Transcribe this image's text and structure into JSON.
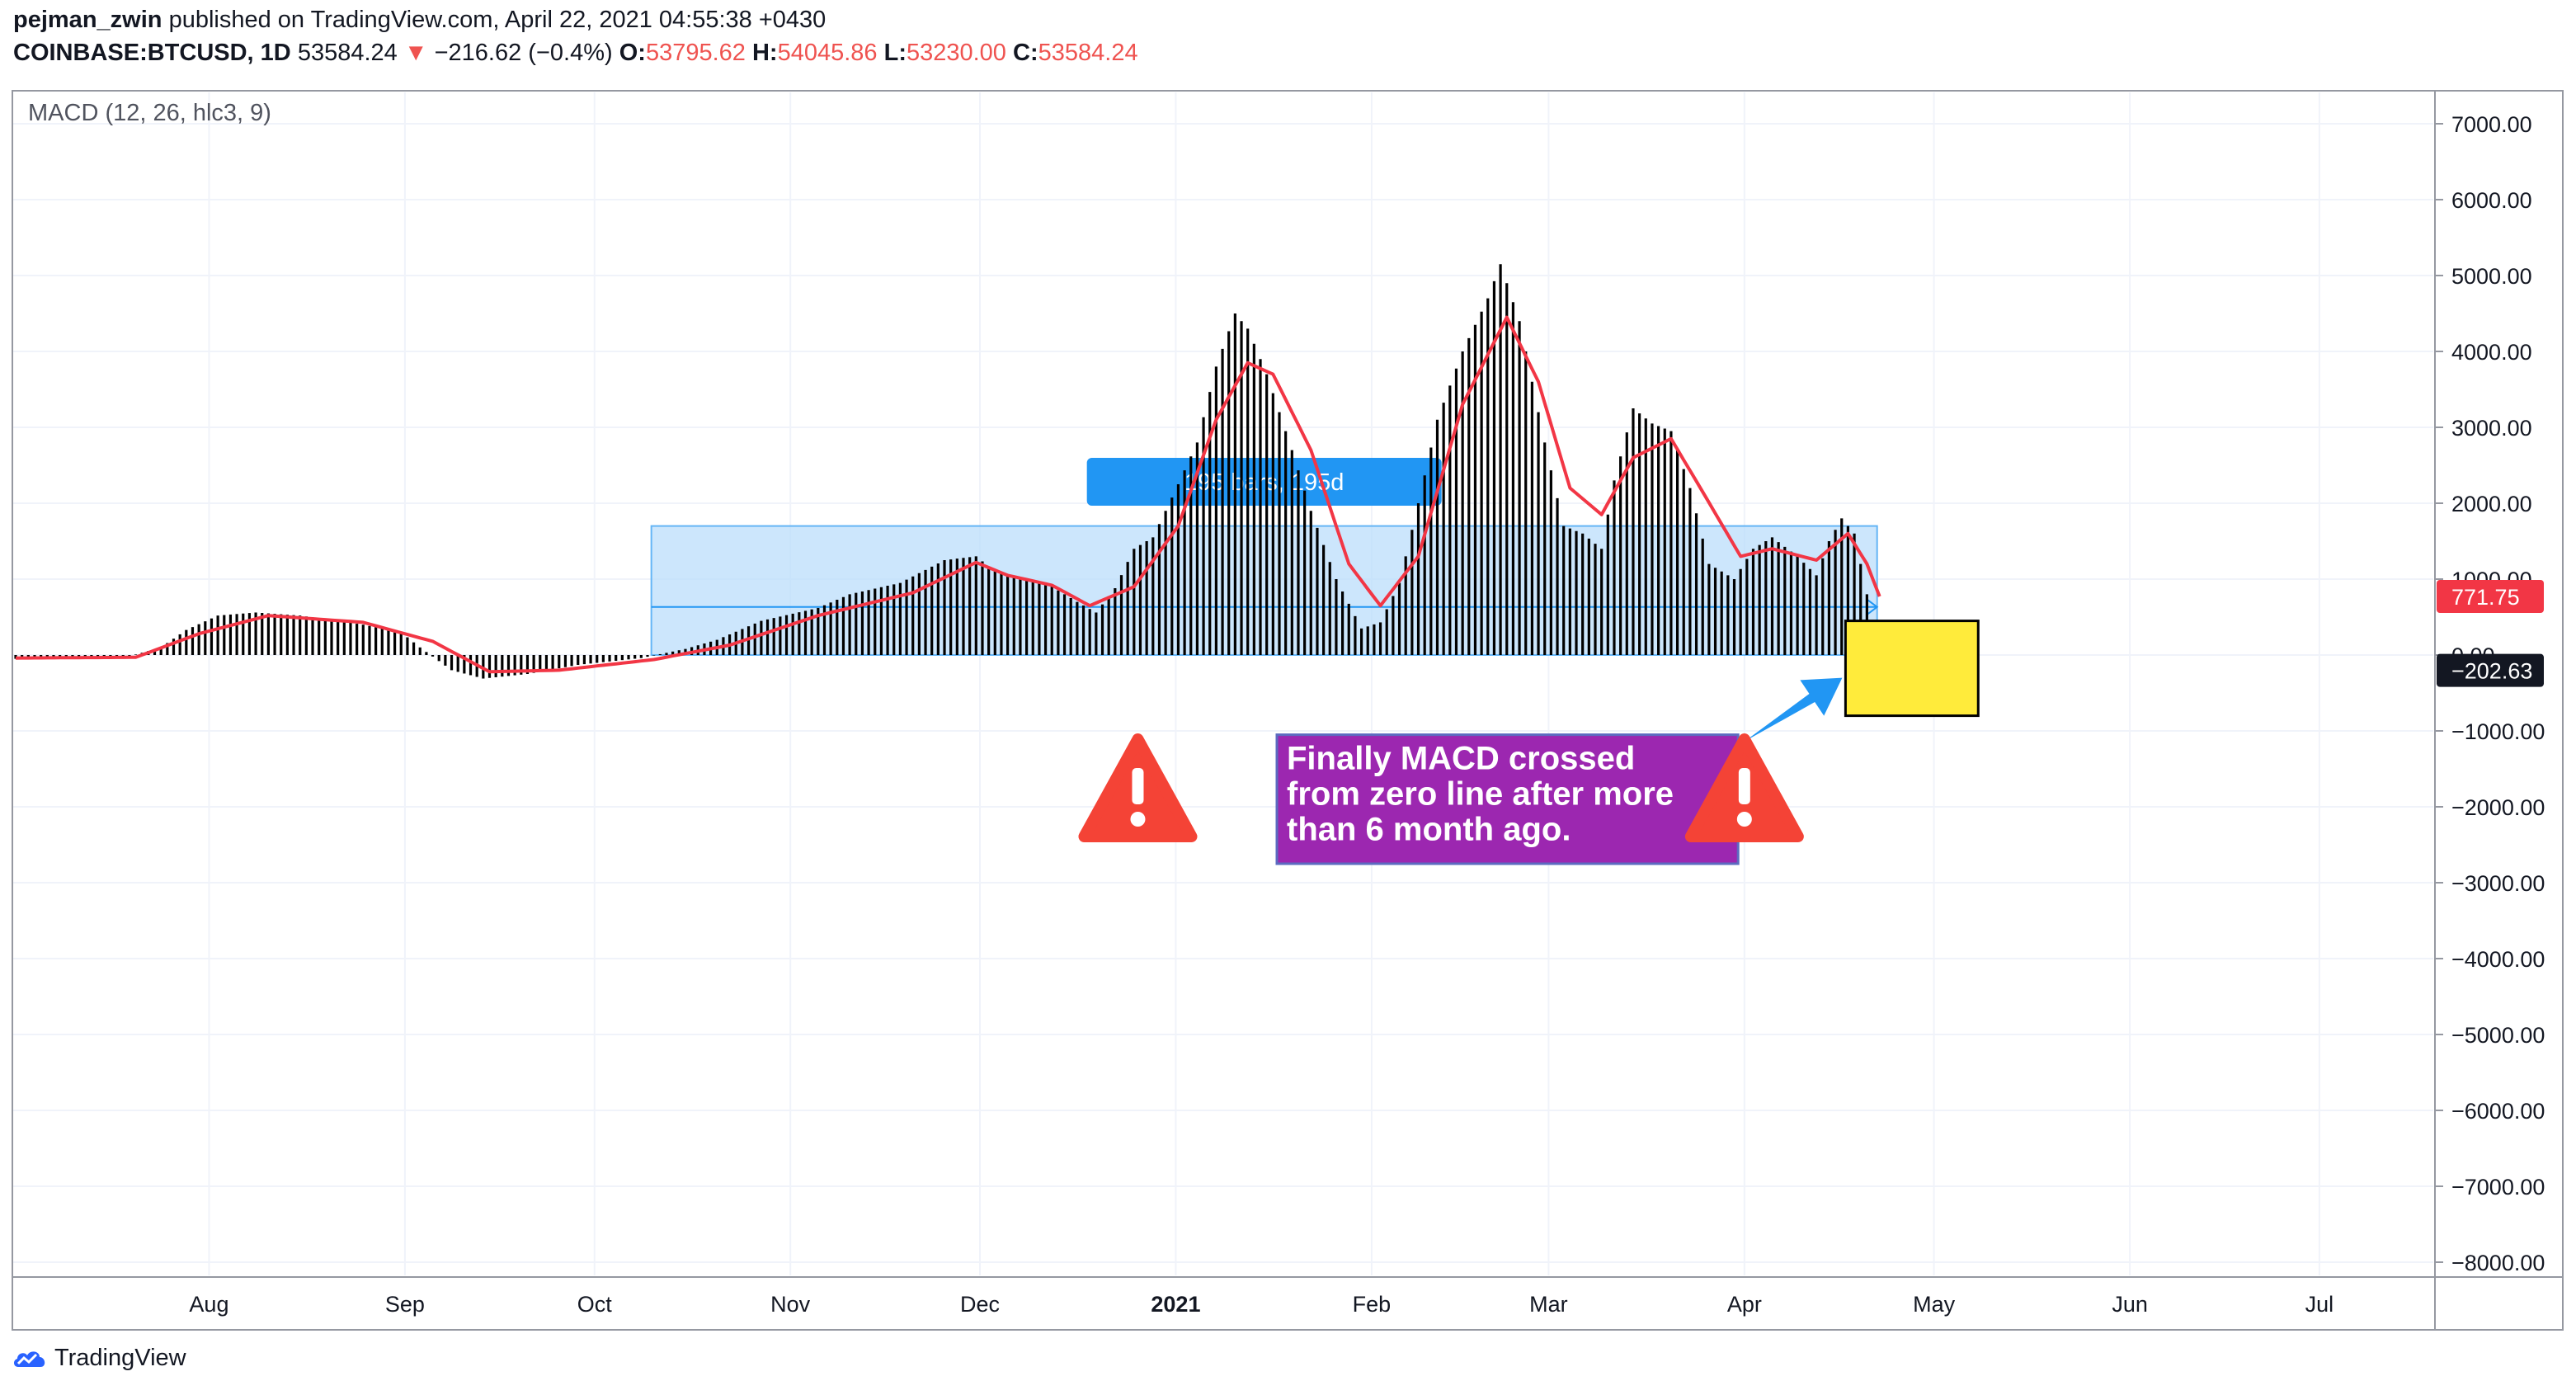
{
  "header": {
    "author": "pejman_zwin",
    "published_text": "published on TradingView.com, April 22, 2021 04:55:38 +0430",
    "symbol": "COINBASE:BTCUSD, 1D",
    "price": "53584.24",
    "change_arrow": "▼",
    "change": "−216.62 (−0.4%)",
    "o_label": "O:",
    "o_value": "53795.62",
    "h_label": "H:",
    "h_value": "54045.86",
    "l_label": "L:",
    "l_value": "53230.00",
    "c_label": "C:",
    "c_value": "53584.24"
  },
  "footer": {
    "brand": "TradingView"
  },
  "annotation": {
    "text_lines": [
      "Finally MACD crossed",
      "from zero line after more",
      "than 6 month ago."
    ],
    "box_color": "#9c27b0",
    "highlight_color": "#ffeb3b",
    "arrow_color": "#2196f3",
    "warning_color": "#f44336"
  },
  "range_label": "195 bars, 195d",
  "chart_data": {
    "type": "bar",
    "title": "MACD (12, 26, hlc3, 9)",
    "x_axis_labels": [
      "Aug",
      "Sep",
      "Oct",
      "Nov",
      "Dec",
      "2021",
      "Feb",
      "Mar",
      "Apr",
      "May",
      "Jun",
      "Jul"
    ],
    "y_ticks": [
      "7000.00",
      "6000.00",
      "5000.00",
      "4000.00",
      "3000.00",
      "2000.00",
      "1000.00",
      "0.00",
      "−1000.00",
      "−2000.00",
      "−3000.00",
      "−4000.00",
      "−5000.00",
      "−6000.00",
      "−7000.00",
      "−8000.00"
    ],
    "ylim": [
      -8200,
      7400
    ],
    "start_date": "2020-07-01",
    "histogram": {
      "name": "MACD",
      "color": "#000000",
      "keypoints": [
        [
          "2020-07-01",
          -50
        ],
        [
          "2020-07-18",
          -40
        ],
        [
          "2020-07-24",
          100
        ],
        [
          "2020-07-28",
          330
        ],
        [
          "2020-08-02",
          520
        ],
        [
          "2020-08-08",
          560
        ],
        [
          "2020-08-15",
          520
        ],
        [
          "2020-08-25",
          400
        ],
        [
          "2020-08-31",
          300
        ],
        [
          "2020-09-03",
          100
        ],
        [
          "2020-09-08",
          -200
        ],
        [
          "2020-09-13",
          -310
        ],
        [
          "2020-09-20",
          -250
        ],
        [
          "2020-09-28",
          -130
        ],
        [
          "2020-10-08",
          -40
        ],
        [
          "2020-10-15",
          80
        ],
        [
          "2020-10-20",
          200
        ],
        [
          "2020-10-27",
          450
        ],
        [
          "2020-11-05",
          620
        ],
        [
          "2020-11-10",
          800
        ],
        [
          "2020-11-18",
          950
        ],
        [
          "2020-11-25",
          1250
        ],
        [
          "2020-11-30",
          1300
        ],
        [
          "2020-12-03",
          1100
        ],
        [
          "2020-12-08",
          980
        ],
        [
          "2020-12-12",
          900
        ],
        [
          "2020-12-16",
          700
        ],
        [
          "2020-12-19",
          560
        ],
        [
          "2020-12-22",
          880
        ],
        [
          "2020-12-25",
          1400
        ],
        [
          "2020-12-28",
          1550
        ],
        [
          "2021-01-01",
          2250
        ],
        [
          "2021-01-04",
          2800
        ],
        [
          "2021-01-07",
          3800
        ],
        [
          "2021-01-10",
          4500
        ],
        [
          "2021-01-12",
          4300
        ],
        [
          "2021-01-15",
          3700
        ],
        [
          "2021-01-19",
          2700
        ],
        [
          "2021-01-22",
          1900
        ],
        [
          "2021-01-26",
          1000
        ],
        [
          "2021-01-30",
          350
        ],
        [
          "2021-02-02",
          430
        ],
        [
          "2021-02-05",
          950
        ],
        [
          "2021-02-08",
          2000
        ],
        [
          "2021-02-11",
          3100
        ],
        [
          "2021-02-15",
          4000
        ],
        [
          "2021-02-19",
          4700
        ],
        [
          "2021-02-21",
          5150
        ],
        [
          "2021-02-24",
          4400
        ],
        [
          "2021-02-28",
          2800
        ],
        [
          "2021-03-03",
          1700
        ],
        [
          "2021-03-06",
          1600
        ],
        [
          "2021-03-09",
          1400
        ],
        [
          "2021-03-11",
          2300
        ],
        [
          "2021-03-14",
          3250
        ],
        [
          "2021-03-17",
          3050
        ],
        [
          "2021-03-20",
          2950
        ],
        [
          "2021-03-23",
          2200
        ],
        [
          "2021-03-26",
          1200
        ],
        [
          "2021-03-30",
          1000
        ],
        [
          "2021-04-02",
          1400
        ],
        [
          "2021-04-05",
          1550
        ],
        [
          "2021-04-09",
          1300
        ],
        [
          "2021-04-12",
          1050
        ],
        [
          "2021-04-14",
          1500
        ],
        [
          "2021-04-16",
          1800
        ],
        [
          "2021-04-18",
          1600
        ],
        [
          "2021-04-20",
          800
        ],
        [
          "2021-04-21",
          200
        ],
        [
          "2021-04-22",
          -202.63
        ]
      ]
    },
    "signal": {
      "name": "Signal",
      "color": "#f23645",
      "keypoints": [
        [
          "2020-07-01",
          -40
        ],
        [
          "2020-07-20",
          -30
        ],
        [
          "2020-07-30",
          280
        ],
        [
          "2020-08-10",
          520
        ],
        [
          "2020-08-25",
          430
        ],
        [
          "2020-09-05",
          180
        ],
        [
          "2020-09-14",
          -220
        ],
        [
          "2020-09-25",
          -200
        ],
        [
          "2020-10-10",
          -60
        ],
        [
          "2020-10-22",
          130
        ],
        [
          "2020-11-05",
          520
        ],
        [
          "2020-11-20",
          820
        ],
        [
          "2020-11-30",
          1220
        ],
        [
          "2020-12-05",
          1050
        ],
        [
          "2020-12-12",
          920
        ],
        [
          "2020-12-18",
          650
        ],
        [
          "2020-12-25",
          900
        ],
        [
          "2021-01-01",
          1700
        ],
        [
          "2021-01-07",
          3100
        ],
        [
          "2021-01-12",
          3850
        ],
        [
          "2021-01-16",
          3700
        ],
        [
          "2021-01-22",
          2700
        ],
        [
          "2021-01-28",
          1200
        ],
        [
          "2021-02-02",
          650
        ],
        [
          "2021-02-08",
          1300
        ],
        [
          "2021-02-15",
          3300
        ],
        [
          "2021-02-22",
          4450
        ],
        [
          "2021-02-27",
          3600
        ],
        [
          "2021-03-04",
          2200
        ],
        [
          "2021-03-09",
          1850
        ],
        [
          "2021-03-14",
          2600
        ],
        [
          "2021-03-20",
          2850
        ],
        [
          "2021-03-25",
          2150
        ],
        [
          "2021-03-31",
          1300
        ],
        [
          "2021-04-05",
          1400
        ],
        [
          "2021-04-12",
          1250
        ],
        [
          "2021-04-17",
          1600
        ],
        [
          "2021-04-20",
          1200
        ],
        [
          "2021-04-22",
          771.75
        ]
      ]
    },
    "last_values": {
      "macd": "−202.63",
      "signal": "771.75"
    },
    "range_box": {
      "from": "2020-10-10",
      "to": "2021-04-22",
      "top": 1700,
      "bottom": 0
    },
    "highlight_box": {
      "from": "2021-04-17",
      "to": "2021-05-08",
      "top": 450,
      "bottom": -800
    },
    "annotation_box": {
      "from": "2021-01-17",
      "to": "2021-03-31",
      "top": -1050,
      "bottom": -2750
    },
    "grid": true
  }
}
